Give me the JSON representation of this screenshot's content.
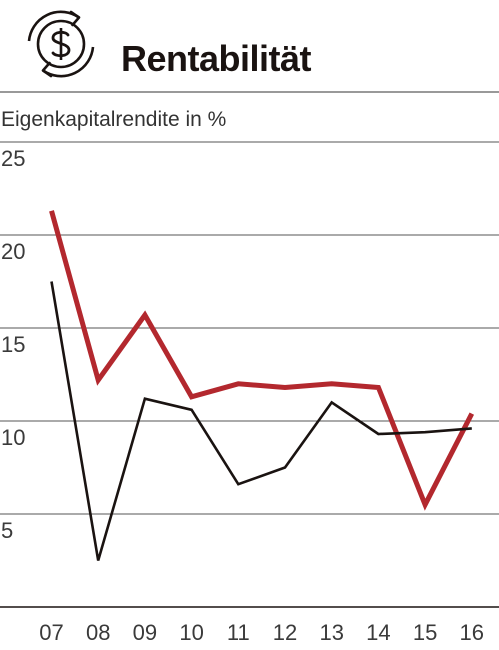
{
  "header": {
    "title": "Rentabilität",
    "icon": "dollar-refresh-icon"
  },
  "colors": {
    "series_1": "#b3282e",
    "series_2": "#1a1311",
    "grid": "#555555",
    "text": "#333333"
  },
  "chart_data": {
    "type": "line",
    "ylabel": "Eigenkapitalrendite in %",
    "categories": [
      "07",
      "08",
      "09",
      "10",
      "11",
      "12",
      "13",
      "14",
      "15",
      "16"
    ],
    "y_ticks": [
      "5",
      "10",
      "15",
      "20",
      "25"
    ],
    "ylim": [
      0,
      25
    ],
    "grid": true,
    "legend": "none",
    "series": [
      {
        "color": "#b3282e",
        "values": [
          21.3,
          12.2,
          15.7,
          11.3,
          12.0,
          11.8,
          12.0,
          11.8,
          5.5,
          10.4
        ]
      },
      {
        "color": "#1a1311",
        "values": [
          17.5,
          2.5,
          11.2,
          10.6,
          6.6,
          7.5,
          11.0,
          9.3,
          9.4,
          9.6
        ]
      }
    ]
  }
}
